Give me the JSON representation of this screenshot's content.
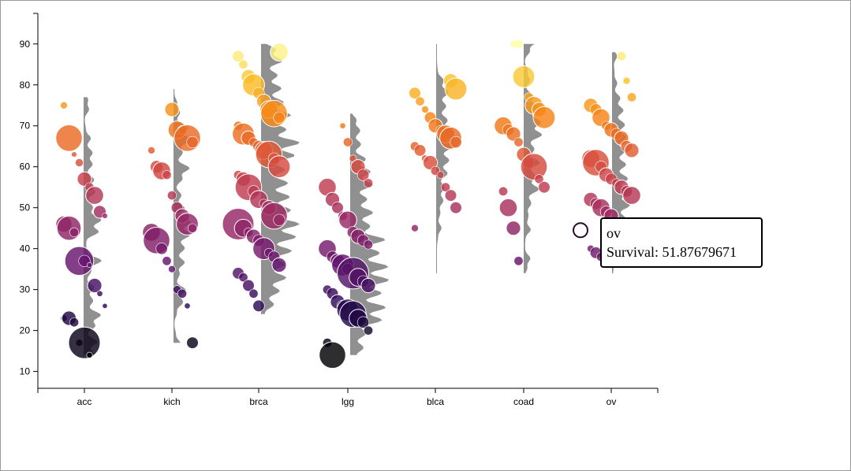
{
  "chart_data": {
    "type": "scatter",
    "subtype": "beeswarm-bubble-with-violin",
    "title": "",
    "xlabel": "",
    "ylabel": "",
    "ylim": [
      8,
      94
    ],
    "yticks": [
      10,
      20,
      30,
      40,
      50,
      60,
      70,
      80,
      90
    ],
    "categories": [
      "acc",
      "kich",
      "brca",
      "lgg",
      "blca",
      "coad",
      "ov"
    ],
    "colormap": "inferno (value-mapped)",
    "groups": [
      {
        "name": "acc",
        "range": [
          14,
          77
        ],
        "points": [
          [
            75,
            0.3
          ],
          [
            67,
            0.9
          ],
          [
            63,
            0.15
          ],
          [
            61,
            0.35
          ],
          [
            57,
            0.6
          ],
          [
            55,
            0.4
          ],
          [
            53,
            0.7
          ],
          [
            49,
            0.55
          ],
          [
            48,
            0.15
          ],
          [
            46,
            0.65
          ],
          [
            45,
            0.85
          ],
          [
            44,
            0.4
          ],
          [
            37,
            0.95
          ],
          [
            37,
            0.5
          ],
          [
            36,
            0.1
          ],
          [
            31,
            0.6
          ],
          [
            29,
            0.2
          ],
          [
            26,
            0.1
          ],
          [
            23,
            0.25
          ],
          [
            23,
            0.6
          ],
          [
            22,
            0.4
          ],
          [
            17,
            0.3
          ],
          [
            17,
            1.0
          ],
          [
            14,
            0.2
          ]
        ]
      },
      {
        "name": "kich",
        "range": [
          17,
          79
        ],
        "points": [
          [
            74,
            0.6
          ],
          [
            69,
            0.7
          ],
          [
            69,
            0.4
          ],
          [
            67,
            0.9
          ],
          [
            66,
            0.5
          ],
          [
            64,
            0.3
          ],
          [
            60,
            0.55
          ],
          [
            59,
            0.7
          ],
          [
            58,
            0.4
          ],
          [
            53,
            0.4
          ],
          [
            50,
            0.5
          ],
          [
            48,
            0.6
          ],
          [
            46,
            0.8
          ],
          [
            45,
            0.4
          ],
          [
            44,
            0.7
          ],
          [
            42,
            0.9
          ],
          [
            40,
            0.5
          ],
          [
            37,
            0.4
          ],
          [
            35,
            0.3
          ],
          [
            30,
            0.35
          ],
          [
            29,
            0.4
          ],
          [
            26,
            0.2
          ],
          [
            17,
            0.5
          ]
        ]
      },
      {
        "name": "brca",
        "range": [
          24,
          90
        ],
        "points": [
          [
            88,
            0.7
          ],
          [
            87,
            0.5
          ],
          [
            85,
            0.4
          ],
          [
            82,
            0.6
          ],
          [
            80,
            0.8
          ],
          [
            78,
            0.5
          ],
          [
            76,
            0.6
          ],
          [
            74,
            0.7
          ],
          [
            73,
            0.9
          ],
          [
            72,
            0.5
          ],
          [
            70,
            0.4
          ],
          [
            68,
            0.8
          ],
          [
            67,
            0.6
          ],
          [
            66,
            0.4
          ],
          [
            65,
            0.5
          ],
          [
            64,
            0.7
          ],
          [
            63,
            0.9
          ],
          [
            62,
            0.5
          ],
          [
            60,
            0.8
          ],
          [
            58,
            0.4
          ],
          [
            57,
            0.6
          ],
          [
            55,
            0.9
          ],
          [
            54,
            0.5
          ],
          [
            52,
            0.7
          ],
          [
            51,
            0.4
          ],
          [
            50,
            0.6
          ],
          [
            48,
            0.9
          ],
          [
            47,
            0.5
          ],
          [
            46,
            1.0
          ],
          [
            45,
            0.7
          ],
          [
            44,
            0.4
          ],
          [
            43,
            0.6
          ],
          [
            42,
            0.5
          ],
          [
            40,
            0.8
          ],
          [
            39,
            0.4
          ],
          [
            38,
            0.5
          ],
          [
            36,
            0.6
          ],
          [
            34,
            0.5
          ],
          [
            33,
            0.4
          ],
          [
            31,
            0.5
          ],
          [
            29,
            0.4
          ],
          [
            26,
            0.5
          ]
        ]
      },
      {
        "name": "lgg",
        "range": [
          14,
          73
        ],
        "points": [
          [
            70,
            0.2
          ],
          [
            66,
            0.4
          ],
          [
            62,
            0.3
          ],
          [
            60,
            0.6
          ],
          [
            58,
            0.5
          ],
          [
            56,
            0.4
          ],
          [
            55,
            0.7
          ],
          [
            52,
            0.6
          ],
          [
            50,
            0.5
          ],
          [
            48,
            0.4
          ],
          [
            47,
            0.7
          ],
          [
            44,
            0.5
          ],
          [
            43,
            0.6
          ],
          [
            42,
            0.5
          ],
          [
            41,
            0.4
          ],
          [
            40,
            0.7
          ],
          [
            38,
            0.5
          ],
          [
            37,
            0.6
          ],
          [
            36,
            0.8
          ],
          [
            35,
            0.5
          ],
          [
            34,
            1.0
          ],
          [
            33,
            0.7
          ],
          [
            32,
            0.5
          ],
          [
            31,
            0.6
          ],
          [
            30,
            0.4
          ],
          [
            29,
            0.5
          ],
          [
            27,
            0.6
          ],
          [
            26,
            0.5
          ],
          [
            25,
            0.8
          ],
          [
            24,
            0.9
          ],
          [
            23,
            0.7
          ],
          [
            22,
            0.5
          ],
          [
            20,
            0.4
          ],
          [
            17,
            0.4
          ],
          [
            14,
            0.9
          ]
        ]
      },
      {
        "name": "blca",
        "range": [
          34,
          90
        ],
        "points": [
          [
            81,
            0.6
          ],
          [
            79,
            0.8
          ],
          [
            78,
            0.5
          ],
          [
            76,
            0.4
          ],
          [
            74,
            0.3
          ],
          [
            72,
            0.5
          ],
          [
            70,
            0.6
          ],
          [
            69,
            0.4
          ],
          [
            68,
            0.7
          ],
          [
            67,
            0.8
          ],
          [
            66,
            0.5
          ],
          [
            65,
            0.4
          ],
          [
            64,
            0.5
          ],
          [
            62,
            0.3
          ],
          [
            61,
            0.6
          ],
          [
            59,
            0.4
          ],
          [
            58,
            0.3
          ],
          [
            55,
            0.4
          ],
          [
            53,
            0.5
          ],
          [
            50,
            0.5
          ],
          [
            45,
            0.3
          ]
        ]
      },
      {
        "name": "coad",
        "range": [
          34,
          90
        ],
        "points": [
          [
            90,
            0.3
          ],
          [
            90,
            0.4
          ],
          [
            82,
            0.8
          ],
          [
            77,
            0.4
          ],
          [
            75,
            0.7
          ],
          [
            74,
            0.6
          ],
          [
            72,
            0.8
          ],
          [
            70,
            0.7
          ],
          [
            69,
            0.5
          ],
          [
            68,
            0.6
          ],
          [
            66,
            0.4
          ],
          [
            63,
            0.6
          ],
          [
            61,
            0.5
          ],
          [
            60,
            0.9
          ],
          [
            57,
            0.4
          ],
          [
            55,
            0.5
          ],
          [
            54,
            0.4
          ],
          [
            50,
            0.7
          ],
          [
            45,
            0.6
          ],
          [
            37,
            0.4
          ]
        ]
      },
      {
        "name": "ov",
        "range": [
          34,
          88
        ],
        "points": [
          [
            87,
            0.4
          ],
          [
            81,
            0.3
          ],
          [
            77,
            0.4
          ],
          [
            75,
            0.6
          ],
          [
            74,
            0.5
          ],
          [
            72,
            0.7
          ],
          [
            70,
            0.4
          ],
          [
            69,
            0.6
          ],
          [
            68,
            0.5
          ],
          [
            67,
            0.6
          ],
          [
            65,
            0.5
          ],
          [
            64,
            0.6
          ],
          [
            62,
            0.7
          ],
          [
            61,
            0.9
          ],
          [
            60,
            0.5
          ],
          [
            58,
            0.6
          ],
          [
            57,
            0.5
          ],
          [
            56,
            0.4
          ],
          [
            55,
            0.6
          ],
          [
            54,
            0.5
          ],
          [
            53,
            0.7
          ],
          [
            52,
            0.6
          ],
          [
            51,
            0.5
          ],
          [
            50,
            0.7
          ],
          [
            49,
            0.5
          ],
          [
            48,
            0.6
          ],
          [
            46,
            0.5
          ],
          [
            45,
            0.6
          ],
          [
            44,
            0.7
          ],
          [
            42,
            0.4
          ],
          [
            40,
            0.3
          ],
          [
            39,
            0.5
          ],
          [
            38,
            0.4
          ]
        ]
      }
    ]
  },
  "tooltip": {
    "title": "ov",
    "label": "Survival:",
    "value": "51.87679671"
  }
}
